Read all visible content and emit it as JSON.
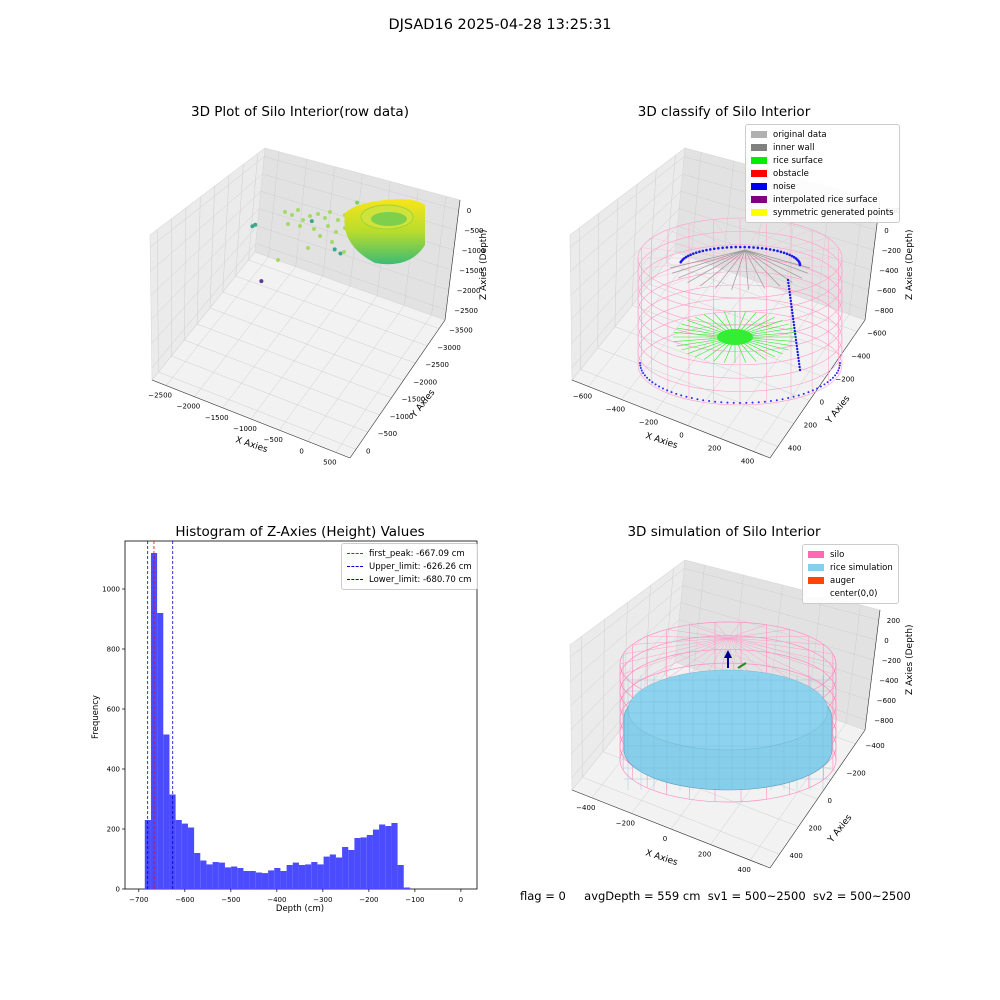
{
  "suptitle": "DJSAD16 2025-04-28 13:25:31",
  "footer": {
    "flag": "flag = 0",
    "avg": "avgDepth = 559 cm",
    "sv1": "sv1 = 500~2500",
    "sv2": "sv2 = 500~2500"
  },
  "chart_data": [
    {
      "type": "scatter",
      "subtype": "3d",
      "title": "3D Plot of Silo Interior(row data)",
      "xlabel": "X Axies",
      "ylabel": "Y Axies",
      "zlabel": "Z Axies (Depth)",
      "xticks": [
        "−2500",
        "−2000",
        "−1500",
        "−1000",
        "−500",
        "0",
        "500"
      ],
      "yticks": [
        "0",
        "−500",
        "−1000",
        "−1500",
        "−2000",
        "−2500",
        "−3000",
        "−3500"
      ],
      "zticks": [
        "0",
        "−500",
        "−1000",
        "−1500",
        "−2000",
        "−2500"
      ],
      "xlim": [
        -2800,
        700
      ],
      "ylim": [
        -3600,
        200
      ],
      "zlim": [
        -2700,
        100
      ],
      "outlier_points": [
        {
          "x": -2750,
          "y": 0,
          "z": -2050,
          "color": "#3aa68c"
        },
        {
          "x": -2700,
          "y": 0,
          "z": -2000,
          "color": "#3aa68c"
        },
        {
          "x": -2400,
          "y": -400,
          "z": -2700,
          "color": "#5c3a8e"
        },
        {
          "x": -1700,
          "y": 0,
          "z": -1500,
          "color": "#3aa68c"
        },
        {
          "x": -1200,
          "y": -200,
          "z": -1700,
          "color": "#3aa68c"
        },
        {
          "x": -1050,
          "y": -300,
          "z": -1650,
          "color": "#3aa68c"
        },
        {
          "x": -900,
          "y": 0,
          "z": -800,
          "color": "#7cd163"
        }
      ],
      "main_cluster": {
        "x_center": 0,
        "y_center": 0,
        "radius": 450,
        "z_top": -100,
        "z_bottom": -700
      }
    },
    {
      "type": "scatter",
      "subtype": "3d",
      "title": "3D classify of Silo Interior",
      "xlabel": "X Axies",
      "ylabel": "Y Axies",
      "zlabel": "Z Axies (Depth)",
      "xticks": [
        "−600",
        "−400",
        "−200",
        "0",
        "200",
        "400"
      ],
      "yticks": [
        "400",
        "200",
        "0",
        "−200",
        "−400",
        "−600"
      ],
      "zticks": [
        "200",
        "0",
        "−200",
        "−400",
        "−600",
        "−800"
      ],
      "xlim": [
        -650,
        500
      ],
      "ylim": [
        -650,
        500
      ],
      "zlim": [
        -900,
        250
      ],
      "legend": [
        {
          "label": "original data",
          "color": "#b0b0b0"
        },
        {
          "label": "inner wall",
          "color": "#808080"
        },
        {
          "label": "rice surface",
          "color": "#00ee00"
        },
        {
          "label": "obstacle",
          "color": "#ff0000"
        },
        {
          "label": "noise",
          "color": "#0000ee"
        },
        {
          "label": "interpolated rice surface",
          "color": "#800080"
        },
        {
          "label": "symmetric generated points",
          "color": "#ffff00"
        }
      ]
    },
    {
      "type": "bar",
      "subtype": "histogram",
      "title": "Histogram of Z-Axies (Height) Values",
      "xlabel": "Depth (cm)",
      "ylabel": "Frequency",
      "xlim": [
        -730,
        35
      ],
      "ylim": [
        0,
        1160
      ],
      "xticks": [
        -700,
        -600,
        -500,
        -400,
        -300,
        -200,
        -100,
        0
      ],
      "xtick_labels": [
        "−700",
        "−600",
        "−500",
        "−400",
        "−300",
        "−200",
        "−100",
        "0"
      ],
      "yticks": [
        0,
        200,
        400,
        600,
        800,
        1000
      ],
      "bin_start": -687,
      "bin_width": 13.4,
      "values": [
        230,
        1120,
        920,
        515,
        315,
        230,
        218,
        205,
        120,
        95,
        82,
        90,
        88,
        72,
        75,
        70,
        60,
        60,
        55,
        53,
        62,
        70,
        60,
        80,
        88,
        80,
        82,
        90,
        82,
        108,
        115,
        105,
        140,
        130,
        170,
        172,
        180,
        198,
        215,
        210,
        220,
        80,
        5
      ],
      "bar_color": "#4b4bff",
      "vlines": [
        {
          "label": "first_peak: -667.09 cm",
          "x": -667.09,
          "color": "#ff0000"
        },
        {
          "label": "Upper_limit: -626.26 cm",
          "x": -626.26,
          "color": "#0000cc"
        },
        {
          "label": "Lower_limit: -680.70 cm",
          "x": -680.7,
          "color": "#0000cc"
        }
      ]
    },
    {
      "type": "scatter",
      "subtype": "3d-surface",
      "title": "3D simulation of Silo Interior",
      "xlabel": "X Axies",
      "ylabel": "Y Axies",
      "zlabel": "Z Axies (Depth)",
      "xticks": [
        "−400",
        "−200",
        "0",
        "200",
        "400"
      ],
      "yticks": [
        "400",
        "200",
        "0",
        "−200",
        "−400"
      ],
      "zticks": [
        "200",
        "0",
        "−200",
        "−400",
        "−600",
        "−800"
      ],
      "xlim": [
        -500,
        500
      ],
      "ylim": [
        -500,
        500
      ],
      "zlim": [
        -900,
        300
      ],
      "legend": [
        {
          "label": "silo",
          "color": "#ff69b4"
        },
        {
          "label": "rice simulation",
          "color": "#87ceeb"
        },
        {
          "label": "auger",
          "color": "#ff4500"
        },
        {
          "label": "center(0,0)",
          "color": "#ffffff"
        }
      ]
    }
  ]
}
